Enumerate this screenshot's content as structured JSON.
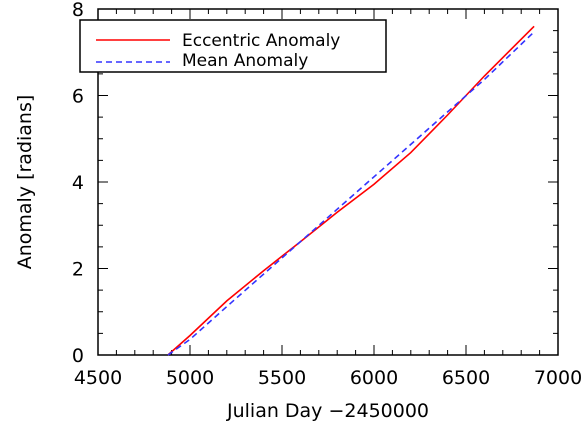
{
  "chart_data": {
    "type": "line",
    "xlabel": "Julian Day −2450000",
    "ylabel": "Anomaly [radians]",
    "xlim": [
      4500,
      7000
    ],
    "ylim": [
      0,
      8
    ],
    "x_ticks": [
      4500,
      5000,
      5500,
      6000,
      6500,
      7000
    ],
    "y_ticks": [
      0,
      2,
      4,
      6,
      8
    ],
    "grid": false,
    "legend_position": "top-left",
    "series": [
      {
        "name": "Eccentric Anomaly",
        "color": "#ff0000",
        "style": "solid",
        "x": [
          4880,
          5000,
          5200,
          5400,
          5600,
          5800,
          6000,
          6200,
          6400,
          6600,
          6870
        ],
        "y": [
          0.0,
          0.45,
          1.25,
          1.95,
          2.62,
          3.3,
          3.95,
          4.68,
          5.55,
          6.45,
          7.6
        ]
      },
      {
        "name": "Mean Anomaly",
        "color": "#3333ff",
        "style": "dashed",
        "x": [
          4880,
          5000,
          5200,
          5400,
          5600,
          5800,
          6000,
          6200,
          6400,
          6600,
          6870
        ],
        "y": [
          0.0,
          0.36,
          1.12,
          1.87,
          2.62,
          3.37,
          4.12,
          4.87,
          5.62,
          6.37,
          7.47
        ]
      }
    ]
  }
}
